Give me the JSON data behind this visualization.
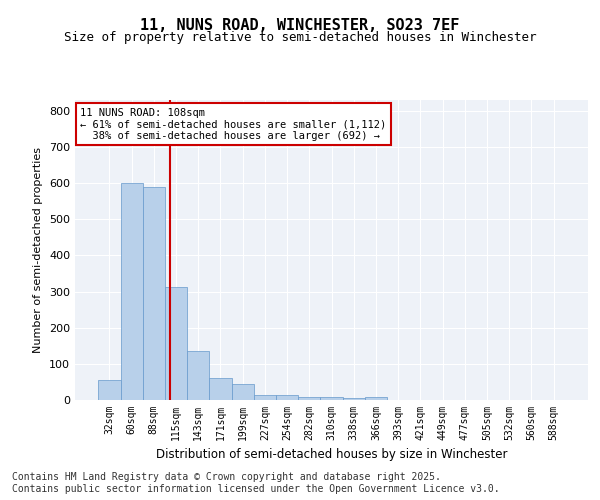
{
  "title": "11, NUNS ROAD, WINCHESTER, SO23 7EF",
  "subtitle": "Size of property relative to semi-detached houses in Winchester",
  "xlabel": "Distribution of semi-detached houses by size in Winchester",
  "ylabel": "Number of semi-detached properties",
  "categories": [
    "32sqm",
    "60sqm",
    "88sqm",
    "115sqm",
    "143sqm",
    "171sqm",
    "199sqm",
    "227sqm",
    "254sqm",
    "282sqm",
    "310sqm",
    "338sqm",
    "366sqm",
    "393sqm",
    "421sqm",
    "449sqm",
    "477sqm",
    "505sqm",
    "532sqm",
    "560sqm",
    "588sqm"
  ],
  "values": [
    55,
    600,
    590,
    312,
    135,
    60,
    45,
    15,
    14,
    8,
    8,
    5,
    7,
    0,
    0,
    0,
    0,
    0,
    0,
    0,
    0
  ],
  "bar_color": "#b8d0ea",
  "bar_edge_color": "#6699cc",
  "vline_color": "#cc0000",
  "property_label": "11 NUNS ROAD: 108sqm",
  "smaller_label": "← 61% of semi-detached houses are smaller (1,112)",
  "larger_label": "38% of semi-detached houses are larger (692) →",
  "annotation_box_color": "#cc0000",
  "ylim": [
    0,
    830
  ],
  "yticks": [
    0,
    100,
    200,
    300,
    400,
    500,
    600,
    700,
    800
  ],
  "background_color": "#eef2f8",
  "footer": "Contains HM Land Registry data © Crown copyright and database right 2025.\nContains public sector information licensed under the Open Government Licence v3.0.",
  "title_fontsize": 11,
  "subtitle_fontsize": 9,
  "footer_fontsize": 7,
  "annot_fontsize": 7.5,
  "ylabel_fontsize": 8,
  "xlabel_fontsize": 8.5,
  "tick_fontsize": 7
}
